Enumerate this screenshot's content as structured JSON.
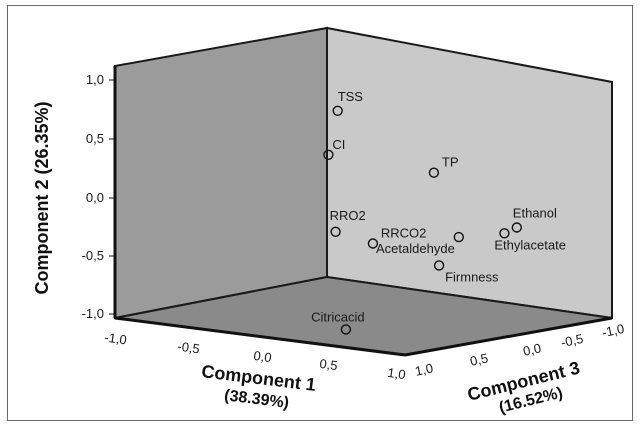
{
  "chart_data": {
    "type": "scatter",
    "title": "",
    "axes": {
      "x": {
        "label": "Component 1",
        "variance": "(38.39%)",
        "range": [
          -1.0,
          1.0
        ],
        "ticks": [
          "-1,0",
          "-0,5",
          "0,0",
          "0,5",
          "1,0"
        ]
      },
      "y": {
        "label": "Component 2 (26.35%)",
        "range": [
          -1.0,
          1.0
        ],
        "ticks": [
          "1,0",
          "0,5",
          "0,0",
          "-0,5",
          "-1,0"
        ]
      },
      "z": {
        "label": "Component 3",
        "variance": "(16.52%)",
        "range": [
          -1.0,
          1.0
        ],
        "ticks": [
          "1,0",
          "0,5",
          "0,0",
          "-0,5",
          "-1,0"
        ]
      }
    },
    "points": [
      {
        "label": "TSS",
        "x": 0.5,
        "y": 1.0,
        "z": 0.95
      },
      {
        "label": "CI",
        "x": 0.4,
        "y": 0.6,
        "z": 0.9
      },
      {
        "label": "TP",
        "x": 0.7,
        "y": 0.4,
        "z": 0.3
      },
      {
        "label": "RRO2",
        "x": 0.45,
        "y": -0.05,
        "z": 0.9
      },
      {
        "label": "RRCO2",
        "x": 0.6,
        "y": -0.15,
        "z": 0.75
      },
      {
        "label": "Acetaldehyde",
        "x": 0.8,
        "y": -0.15,
        "z": 0.2
      },
      {
        "label": "Ethanol",
        "x": 0.95,
        "y": -0.1,
        "z": -0.15
      },
      {
        "label": "Ethylacetate",
        "x": 0.9,
        "y": -0.15,
        "z": -0.1
      },
      {
        "label": "Firmness",
        "x": 0.7,
        "y": -0.4,
        "z": 0.25
      },
      {
        "label": "Citricacid",
        "x": 0.45,
        "y": -0.9,
        "z": 0.8
      }
    ]
  }
}
